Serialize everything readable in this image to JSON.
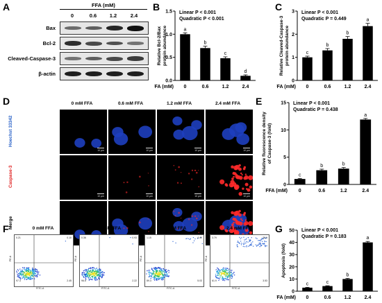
{
  "panels": {
    "a": "A",
    "b": "B",
    "c": "C",
    "d": "D",
    "e": "E",
    "f": "F",
    "g": "G"
  },
  "western_blot": {
    "title": "FFA  (mM)",
    "lanes": [
      "0",
      "0.6",
      "1.2",
      "2.4"
    ],
    "proteins": [
      "Bax",
      "Bcl-2",
      "Cleaved-Caspase-3",
      "β-actin"
    ],
    "band_intensity": [
      [
        0.35,
        0.45,
        0.85,
        1.0
      ],
      [
        0.8,
        0.6,
        0.55,
        0.3
      ],
      [
        0.3,
        0.45,
        0.6,
        0.7
      ],
      [
        0.9,
        0.9,
        0.9,
        0.9
      ]
    ]
  },
  "microscopy": {
    "columns": [
      "0 mM FFA",
      "0.6 mM FFA",
      "1.2 mM FFA",
      "2.4 mM FFA"
    ],
    "rows": [
      "Hoechst 33342",
      "Caspase-3",
      "Merge"
    ],
    "row_colors": [
      "#2a62c8",
      "#e02020",
      "#000000"
    ],
    "scale_bar": "10 μm"
  },
  "flow": {
    "columns": [
      "0 mM FFA",
      "0.6 mM FFA",
      "1.2 mM FFA",
      "2.4 mM FFA"
    ],
    "x_axis": "FITC-A",
    "y_axis": "PE-A",
    "quadrants": [
      {
        "q1": "0.21",
        "q2": "0.10",
        "q3": "2.45",
        "q4": "97.3"
      },
      {
        "q1": "0.36",
        "q2": "0.93",
        "q3": "2.22",
        "q4": "96.5"
      },
      {
        "q1": "1.15",
        "q2": "4.49",
        "q3": "5.03",
        "q4": "89.3"
      },
      {
        "q1": "3.79",
        "q2": "30.9",
        "q3": "3.53",
        "q4": "61.9"
      }
    ]
  },
  "chart_data": [
    {
      "id": "B",
      "type": "bar",
      "title": "",
      "stats": [
        "Linear P < 0.001",
        "Quadratic P < 0.001"
      ],
      "ylabel": "Relative Bcl-2/Bax protein abundance",
      "xlabel": "FFA (mM)",
      "categories": [
        "0",
        "0.6",
        "1.2",
        "2.4"
      ],
      "values": [
        1.0,
        0.7,
        0.48,
        0.1
      ],
      "errors": [
        0.03,
        0.04,
        0.03,
        0.02
      ],
      "letters": [
        "a",
        "b",
        "c",
        "d"
      ],
      "ylim": [
        0,
        1.5
      ],
      "yticks": [
        "0.0",
        "0.5",
        "1.0",
        "1.5"
      ]
    },
    {
      "id": "C",
      "type": "bar",
      "title": "",
      "stats": [
        "Linear P < 0.001",
        "Quadratic P = 0.449"
      ],
      "ylabel": "Relative Cleaved-Caspase-3 protein abundance",
      "xlabel": "FFA (mM)",
      "categories": [
        "0",
        "0.6",
        "1.2",
        "2.4"
      ],
      "values": [
        1.0,
        1.3,
        1.8,
        2.35
      ],
      "errors": [
        0.05,
        0.08,
        0.1,
        0.12
      ],
      "letters": [
        "c",
        "b",
        "b",
        "a"
      ],
      "ylim": [
        0,
        3
      ],
      "yticks": [
        "0",
        "1",
        "2",
        "3"
      ]
    },
    {
      "id": "E",
      "type": "bar",
      "title": "",
      "stats": [
        "Linear P < 0.001",
        "Quadratic P = 0.438"
      ],
      "ylabel": "Relative fluorescence density of Caspase-3 (fold)",
      "xlabel": "FFA (mM)",
      "categories": [
        "0",
        "0.6",
        "1.2",
        "2.4"
      ],
      "values": [
        1.0,
        2.6,
        2.9,
        11.9
      ],
      "errors": [
        0.1,
        0.2,
        0.2,
        0.2
      ],
      "letters": [
        "c",
        "b",
        "b",
        "a"
      ],
      "ylim": [
        0,
        15
      ],
      "yticks": [
        "0",
        "5",
        "10",
        "15"
      ]
    },
    {
      "id": "G",
      "type": "bar",
      "title": "",
      "stats": [
        "Linear P < 0.001",
        "Quadratic P = 0.183"
      ],
      "ylabel": "Apoptosis (fold)",
      "xlabel": "FFA (mM)",
      "categories": [
        "0",
        "0.6",
        "1.2",
        "2.4"
      ],
      "values": [
        2.9,
        4.2,
        10.0,
        40.0
      ],
      "errors": [
        0.3,
        0.3,
        0.5,
        0.8
      ],
      "letters": [
        "c",
        "c",
        "b",
        "a"
      ],
      "ylim": [
        0,
        50
      ],
      "yticks": [
        "0",
        "10",
        "20",
        "30",
        "40",
        "50"
      ]
    }
  ]
}
